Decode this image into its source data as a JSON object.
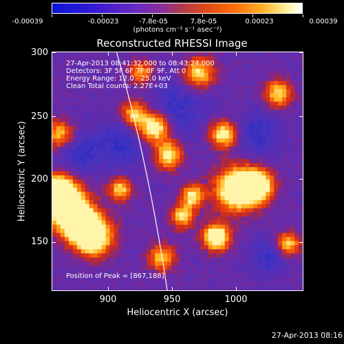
{
  "colorbar": {
    "tick_labels": [
      "-0.00039",
      "-0.00023",
      "-7.8e-05",
      "7.8e-05",
      "0.00023",
      "0.00039"
    ],
    "units": "(photons cm⁻² s⁻¹ asec⁻²)"
  },
  "plot": {
    "title": "Reconstructed RHESSI Image",
    "annotations": {
      "time_range": "27-Apr-2013 08:41:32.000 to 08:43:24.000",
      "detectors": "Detectors: 3F 5F 6F 7F 8F 9F, Att 0",
      "energy_range": "Energy Range: 12.0 - 25.0 keV",
      "clean": "Clean    Total counts: 2.27E+03",
      "peak": "Position of Peak = [867,188]"
    }
  },
  "axes": {
    "x_title": "Heliocentric X (arcsec)",
    "y_title": "Heliocentric Y (arcsec)",
    "x_ticks": [
      "900",
      "950",
      "1000"
    ],
    "y_ticks": [
      "300",
      "250",
      "200",
      "150"
    ]
  },
  "timestamp": "27-Apr-2013 08:16",
  "colors": {
    "background": "#000000",
    "frame": "#ffffff",
    "limb_line": "#ffffff"
  }
}
